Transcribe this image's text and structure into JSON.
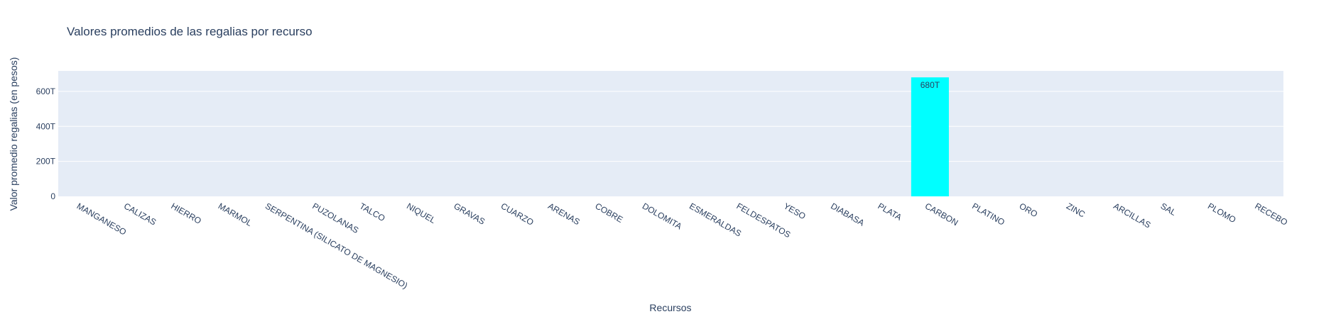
{
  "chart_data": {
    "type": "bar",
    "title": "Valores promedios de las regalias por recurso",
    "xlabel": "Recursos",
    "ylabel": "Valor promedio regalias (en pesos)",
    "categories": [
      "MANGANESO",
      "CALIZAS",
      "HIERRO",
      "MARMOL",
      "SERPENTINA (SILICATO DE MAGNESIO)",
      "PUZOLANAS",
      "TALCO",
      "NIQUEL",
      "GRAVAS",
      "CUARZO",
      "ARENAS",
      "COBRE",
      "DOLOMITA",
      "ESMERALDAS",
      "FELDESPATOS",
      "YESO",
      "DIABASA",
      "PLATA",
      "CARBON",
      "PLATINO",
      "ORO",
      "ZINC",
      "ARCILLAS",
      "SAL",
      "PLOMO",
      "RECEBO"
    ],
    "values": [
      0,
      0,
      0,
      0,
      0,
      0,
      0,
      0,
      0,
      0,
      0,
      0,
      0,
      0,
      0,
      0,
      0,
      0,
      680000000000000,
      0,
      0,
      0,
      0,
      0,
      0,
      0
    ],
    "value_labels": [
      "",
      "",
      "",
      "",
      "",
      "",
      "",
      "",
      "",
      "",
      "",
      "",
      "",
      "",
      "",
      "",
      "",
      "",
      "680T",
      "",
      "",
      "",
      "",
      "",
      "",
      ""
    ],
    "ylim": [
      0,
      717000000000000
    ],
    "yticks": [
      0,
      200000000000000,
      400000000000000,
      600000000000000
    ],
    "ytick_labels": [
      "0",
      "200T",
      "400T",
      "600T"
    ],
    "bar_color": "#00ffff",
    "plot_bg": "#e5ecf6",
    "grid": true
  }
}
